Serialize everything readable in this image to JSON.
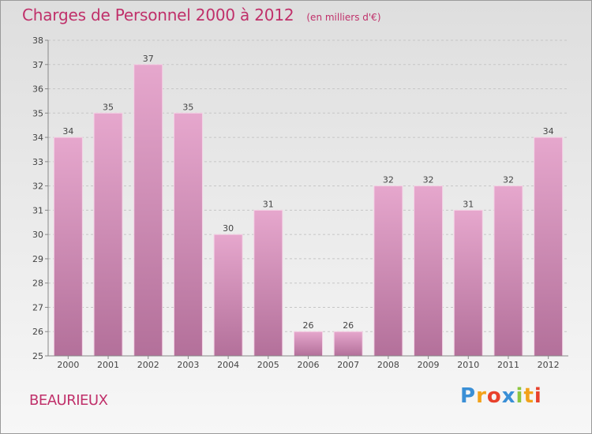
{
  "title": "Charges de Personnel 2000 à 2012",
  "subtitle": "(en milliers d'€)",
  "commune": "BEAURIEUX",
  "logo": {
    "letters": [
      "P",
      "r",
      "o",
      "x",
      "i",
      "t",
      "i"
    ],
    "colors": [
      "#3a8fd6",
      "#f2a21a",
      "#e8412c",
      "#3a8fd6",
      "#8dc63f",
      "#f2a21a",
      "#e8412c"
    ]
  },
  "colors": {
    "bar_top": "#e6a7cd",
    "bar_bottom": "#b3709a",
    "title": "#c0306a"
  },
  "chart_data": {
    "type": "bar",
    "categories": [
      "2000",
      "2001",
      "2002",
      "2003",
      "2004",
      "2005",
      "2006",
      "2007",
      "2008",
      "2009",
      "2010",
      "2011",
      "2012"
    ],
    "values": [
      34,
      35,
      37,
      35,
      30,
      31,
      26,
      26,
      32,
      32,
      31,
      32,
      34
    ],
    "data_labels": [
      "34",
      "35",
      "37",
      "35",
      "30",
      "31",
      "26",
      "26",
      "32",
      "32",
      "31",
      "32",
      "34"
    ],
    "title": "Charges de Personnel 2000 à 2012",
    "subtitle": "(en milliers d'€)",
    "ylim": [
      25,
      38
    ],
    "yticks": [
      25,
      26,
      27,
      28,
      29,
      30,
      31,
      32,
      33,
      34,
      35,
      36,
      37,
      38
    ],
    "grid": true,
    "legend": "none"
  }
}
